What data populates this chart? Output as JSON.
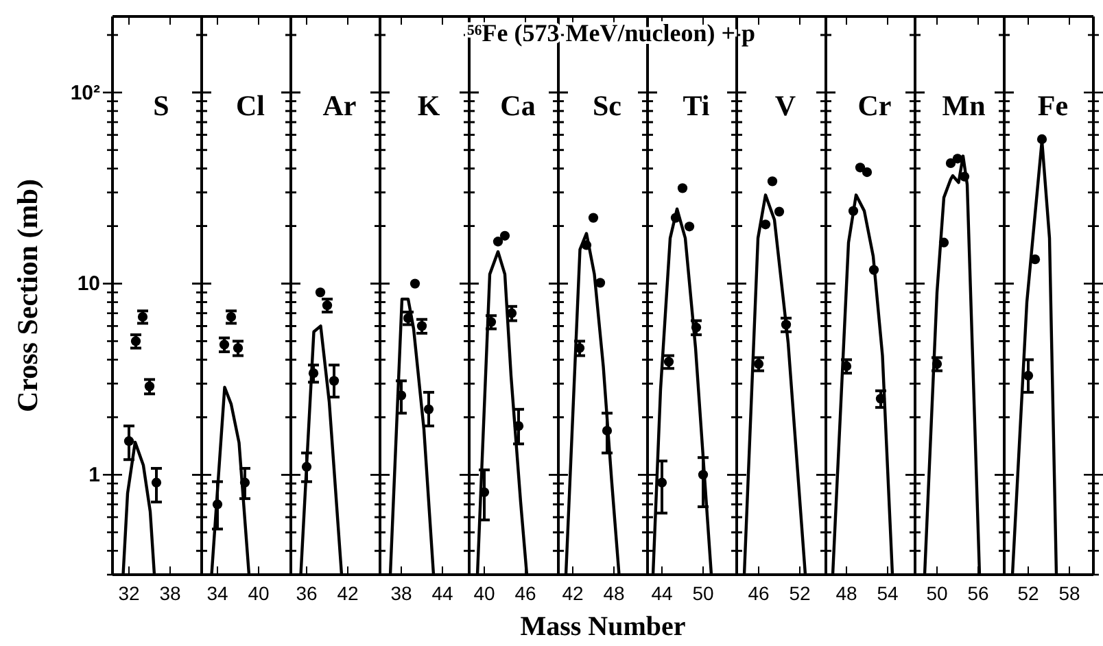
{
  "chart_data": [
    {
      "type": "scatter",
      "ylabel": "Cross Section (mb)",
      "annotations": [
        "S"
      ],
      "log": "y",
      "xlim": [
        29.6,
        42.6
      ],
      "xticks": [
        32,
        38
      ],
      "ylim": [
        0.3,
        250
      ],
      "yticks": [
        {
          "value": 0.3,
          "label": null
        },
        {
          "value": 0.4,
          "label": null
        },
        {
          "value": 0.5,
          "label": null
        },
        {
          "value": 0.6,
          "label": null
        },
        {
          "value": 0.7,
          "label": null
        },
        {
          "value": 0.8,
          "label": null
        },
        {
          "value": 0.9,
          "label": null
        },
        1,
        {
          "value": 2,
          "label": null
        },
        {
          "value": 3,
          "label": null
        },
        {
          "value": 4,
          "label": null
        },
        {
          "value": 5,
          "label": null
        },
        {
          "value": 6,
          "label": null
        },
        {
          "value": 7,
          "label": null
        },
        {
          "value": 8,
          "label": null
        },
        {
          "value": 9,
          "label": null
        },
        10,
        {
          "value": 20,
          "label": null
        },
        {
          "value": 30,
          "label": null
        },
        {
          "value": 40,
          "label": null
        },
        {
          "value": 50,
          "label": null
        },
        {
          "value": 60,
          "label": null
        },
        {
          "value": 70,
          "label": null
        },
        {
          "value": 80,
          "label": null
        },
        {
          "value": 90,
          "label": null
        },
        {
          "value": 100,
          "label": "10²"
        },
        {
          "value": 200,
          "label": null
        }
      ],
      "series": [
        {
          "type": "scatter",
          "marker": "circle",
          "color": "#000000",
          "x": [
            32,
            33,
            34,
            35,
            36
          ],
          "values": [
            1.5,
            5.0,
            6.7,
            2.9,
            0.91
          ],
          "errors": [
            0.3,
            0.4,
            0.5,
            0.25,
            [
              0.72,
              1.08
            ]
          ]
        },
        {
          "type": "line",
          "color": "#000000",
          "x": [
            31.15,
            31.8,
            32.9,
            34.1,
            35.1,
            35.7
          ],
          "values": [
            0.3,
            0.8,
            1.48,
            1.12,
            0.64,
            0.3
          ]
        }
      ]
    },
    {
      "type": "scatter",
      "annotations": [
        "Cl"
      ],
      "log": "y",
      "tick_labels": "x",
      "xlim": [
        31.7,
        44.7
      ],
      "xticks": [
        34,
        40
      ],
      "ylim": [
        0.3,
        250
      ],
      "yticks": [
        {
          "value": 0.3,
          "label": null
        },
        {
          "value": 0.4,
          "label": null
        },
        {
          "value": 0.5,
          "label": null
        },
        {
          "value": 0.6,
          "label": null
        },
        {
          "value": 0.7,
          "label": null
        },
        {
          "value": 0.8,
          "label": null
        },
        {
          "value": 0.9,
          "label": null
        },
        1,
        {
          "value": 2,
          "label": null
        },
        {
          "value": 3,
          "label": null
        },
        {
          "value": 4,
          "label": null
        },
        {
          "value": 5,
          "label": null
        },
        {
          "value": 6,
          "label": null
        },
        {
          "value": 7,
          "label": null
        },
        {
          "value": 8,
          "label": null
        },
        {
          "value": 9,
          "label": null
        },
        10,
        {
          "value": 20,
          "label": null
        },
        {
          "value": 30,
          "label": null
        },
        {
          "value": 40,
          "label": null
        },
        {
          "value": 50,
          "label": null
        },
        {
          "value": 60,
          "label": null
        },
        {
          "value": 70,
          "label": null
        },
        {
          "value": 80,
          "label": null
        },
        {
          "value": 90,
          "label": null
        },
        100,
        {
          "value": 200,
          "label": null
        }
      ],
      "series": [
        {
          "type": "scatter",
          "marker": "circle",
          "color": "#000000",
          "x": [
            34,
            35,
            36,
            37,
            38
          ],
          "values": [
            0.7,
            4.8,
            6.7,
            4.6,
            0.91
          ],
          "errors": [
            [
              0.52,
              0.92
            ],
            0.4,
            0.5,
            0.4,
            [
              0.75,
              1.08
            ]
          ]
        },
        {
          "type": "line",
          "color": "#000000",
          "x": [
            33.15,
            35.05,
            36.0,
            37.15,
            38.6
          ],
          "values": [
            0.3,
            2.87,
            2.34,
            1.47,
            0.3
          ]
        }
      ]
    },
    {
      "type": "scatter",
      "annotations": [
        "Ar"
      ],
      "log": "y",
      "tick_labels": "x",
      "xlim": [
        33.7,
        46.7
      ],
      "xticks": [
        36,
        42
      ],
      "ylim": [
        0.3,
        250
      ],
      "yticks": [
        {
          "value": 0.3,
          "label": null
        },
        {
          "value": 0.4,
          "label": null
        },
        {
          "value": 0.5,
          "label": null
        },
        {
          "value": 0.6,
          "label": null
        },
        {
          "value": 0.7,
          "label": null
        },
        {
          "value": 0.8,
          "label": null
        },
        {
          "value": 0.9,
          "label": null
        },
        1,
        {
          "value": 2,
          "label": null
        },
        {
          "value": 3,
          "label": null
        },
        {
          "value": 4,
          "label": null
        },
        {
          "value": 5,
          "label": null
        },
        {
          "value": 6,
          "label": null
        },
        {
          "value": 7,
          "label": null
        },
        {
          "value": 8,
          "label": null
        },
        {
          "value": 9,
          "label": null
        },
        10,
        {
          "value": 20,
          "label": null
        },
        {
          "value": 30,
          "label": null
        },
        {
          "value": 40,
          "label": null
        },
        {
          "value": 50,
          "label": null
        },
        {
          "value": 60,
          "label": null
        },
        {
          "value": 70,
          "label": null
        },
        {
          "value": 80,
          "label": null
        },
        {
          "value": 90,
          "label": null
        },
        100,
        {
          "value": 200,
          "label": null
        }
      ],
      "series": [
        {
          "type": "scatter",
          "marker": "circle",
          "color": "#000000",
          "x": [
            36,
            37,
            38,
            39,
            40
          ],
          "values": [
            1.1,
            3.4,
            9.0,
            7.7,
            3.1
          ],
          "errors": [
            [
              0.92,
              1.3
            ],
            0.35,
            null,
            0.6,
            [
              2.55,
              3.75
            ]
          ]
        },
        {
          "type": "line",
          "color": "#000000",
          "x": [
            35.15,
            37.05,
            38.05,
            39.3,
            40.15,
            41.1
          ],
          "values": [
            0.3,
            5.6,
            6.0,
            2.4,
            0.9,
            0.3
          ]
        }
      ]
    },
    {
      "type": "scatter",
      "annotations": [
        "K"
      ],
      "log": "y",
      "tick_labels": "x",
      "xlim": [
        34.9,
        47.9
      ],
      "xticks": [
        38,
        44
      ],
      "ylim": [
        0.3,
        250
      ],
      "yticks": [
        {
          "value": 0.3,
          "label": null
        },
        {
          "value": 0.4,
          "label": null
        },
        {
          "value": 0.5,
          "label": null
        },
        {
          "value": 0.6,
          "label": null
        },
        {
          "value": 0.7,
          "label": null
        },
        {
          "value": 0.8,
          "label": null
        },
        {
          "value": 0.9,
          "label": null
        },
        1,
        {
          "value": 2,
          "label": null
        },
        {
          "value": 3,
          "label": null
        },
        {
          "value": 4,
          "label": null
        },
        {
          "value": 5,
          "label": null
        },
        {
          "value": 6,
          "label": null
        },
        {
          "value": 7,
          "label": null
        },
        {
          "value": 8,
          "label": null
        },
        {
          "value": 9,
          "label": null
        },
        10,
        {
          "value": 20,
          "label": null
        },
        {
          "value": 30,
          "label": null
        },
        {
          "value": 40,
          "label": null
        },
        {
          "value": 50,
          "label": null
        },
        {
          "value": 60,
          "label": null
        },
        {
          "value": 70,
          "label": null
        },
        {
          "value": 80,
          "label": null
        },
        {
          "value": 90,
          "label": null
        },
        100,
        {
          "value": 200,
          "label": null
        }
      ],
      "series": [
        {
          "type": "scatter",
          "marker": "circle",
          "color": "#000000",
          "x": [
            38,
            39,
            40,
            41,
            42
          ],
          "values": [
            2.6,
            6.6,
            10.0,
            6.0,
            2.2
          ],
          "errors": [
            [
              2.1,
              3.1
            ],
            0.5,
            null,
            0.5,
            [
              1.8,
              2.7
            ]
          ]
        },
        {
          "type": "line",
          "color": "#000000",
          "x": [
            36.4,
            38.1,
            39.0,
            39.8,
            41.3,
            42.7
          ],
          "values": [
            0.3,
            8.3,
            8.3,
            5.8,
            1.73,
            0.3
          ]
        }
      ]
    },
    {
      "type": "scatter",
      "annotations": [
        "Ca"
      ],
      "log": "y",
      "tick_labels": "x",
      "xlim": [
        37.8,
        50.8
      ],
      "xticks": [
        40,
        46
      ],
      "ylim": [
        0.3,
        250
      ],
      "yticks": [
        {
          "value": 0.3,
          "label": null
        },
        {
          "value": 0.4,
          "label": null
        },
        {
          "value": 0.5,
          "label": null
        },
        {
          "value": 0.6,
          "label": null
        },
        {
          "value": 0.7,
          "label": null
        },
        {
          "value": 0.8,
          "label": null
        },
        {
          "value": 0.9,
          "label": null
        },
        1,
        {
          "value": 2,
          "label": null
        },
        {
          "value": 3,
          "label": null
        },
        {
          "value": 4,
          "label": null
        },
        {
          "value": 5,
          "label": null
        },
        {
          "value": 6,
          "label": null
        },
        {
          "value": 7,
          "label": null
        },
        {
          "value": 8,
          "label": null
        },
        {
          "value": 9,
          "label": null
        },
        10,
        {
          "value": 20,
          "label": null
        },
        {
          "value": 30,
          "label": null
        },
        {
          "value": 40,
          "label": null
        },
        {
          "value": 50,
          "label": null
        },
        {
          "value": 60,
          "label": null
        },
        {
          "value": 70,
          "label": null
        },
        {
          "value": 80,
          "label": null
        },
        {
          "value": 90,
          "label": null
        },
        100,
        {
          "value": 200,
          "label": null
        }
      ],
      "series": [
        {
          "type": "scatter",
          "marker": "circle",
          "color": "#000000",
          "x": [
            40,
            41,
            42,
            43,
            44,
            45
          ],
          "values": [
            0.81,
            6.3,
            16.6,
            17.8,
            7.0,
            1.8
          ],
          "errors": [
            [
              0.58,
              1.06
            ],
            0.5,
            null,
            null,
            0.6,
            [
              1.45,
              2.2
            ]
          ]
        },
        {
          "type": "line",
          "color": "#000000",
          "x": [
            39.0,
            40.8,
            42.0,
            43.0,
            43.9,
            45.3,
            46.2
          ],
          "values": [
            0.3,
            11.2,
            14.7,
            11.2,
            3.3,
            0.72,
            0.3
          ]
        }
      ]
    },
    {
      "type": "scatter",
      "title": "⁵⁶Fe (573 MeV/nucleon) + p",
      "xlabel": "Mass Number",
      "annotations": [
        "Sc"
      ],
      "log": "y",
      "tick_labels": "x",
      "xlim": [
        39.9,
        52.9
      ],
      "xticks": [
        42,
        48
      ],
      "ylim": [
        0.3,
        250
      ],
      "yticks": [
        {
          "value": 0.3,
          "label": null
        },
        {
          "value": 0.4,
          "label": null
        },
        {
          "value": 0.5,
          "label": null
        },
        {
          "value": 0.6,
          "label": null
        },
        {
          "value": 0.7,
          "label": null
        },
        {
          "value": 0.8,
          "label": null
        },
        {
          "value": 0.9,
          "label": null
        },
        1,
        {
          "value": 2,
          "label": null
        },
        {
          "value": 3,
          "label": null
        },
        {
          "value": 4,
          "label": null
        },
        {
          "value": 5,
          "label": null
        },
        {
          "value": 6,
          "label": null
        },
        {
          "value": 7,
          "label": null
        },
        {
          "value": 8,
          "label": null
        },
        {
          "value": 9,
          "label": null
        },
        10,
        {
          "value": 20,
          "label": null
        },
        {
          "value": 30,
          "label": null
        },
        {
          "value": 40,
          "label": null
        },
        {
          "value": 50,
          "label": null
        },
        {
          "value": 60,
          "label": null
        },
        {
          "value": 70,
          "label": null
        },
        {
          "value": 80,
          "label": null
        },
        {
          "value": 90,
          "label": null
        },
        100,
        {
          "value": 200,
          "label": null
        }
      ],
      "series": [
        {
          "type": "scatter",
          "marker": "circle",
          "color": "#000000",
          "x": [
            43,
            44,
            45,
            46,
            47
          ],
          "values": [
            4.6,
            15.9,
            22.1,
            10.1,
            1.7
          ],
          "errors": [
            0.4,
            null,
            null,
            null,
            [
              1.3,
              2.1
            ]
          ]
        },
        {
          "type": "line",
          "color": "#000000",
          "x": [
            41.0,
            43.05,
            44.0,
            45.15,
            46.45,
            47.65,
            48.75
          ],
          "values": [
            0.3,
            15.1,
            18.3,
            11.2,
            3.7,
            0.95,
            0.3
          ]
        }
      ]
    },
    {
      "type": "scatter",
      "annotations": [
        "Ti"
      ],
      "log": "y",
      "tick_labels": "x",
      "xlim": [
        41.9,
        54.9
      ],
      "xticks": [
        44,
        50
      ],
      "ylim": [
        0.3,
        250
      ],
      "yticks": [
        {
          "value": 0.3,
          "label": null
        },
        {
          "value": 0.4,
          "label": null
        },
        {
          "value": 0.5,
          "label": null
        },
        {
          "value": 0.6,
          "label": null
        },
        {
          "value": 0.7,
          "label": null
        },
        {
          "value": 0.8,
          "label": null
        },
        {
          "value": 0.9,
          "label": null
        },
        1,
        {
          "value": 2,
          "label": null
        },
        {
          "value": 3,
          "label": null
        },
        {
          "value": 4,
          "label": null
        },
        {
          "value": 5,
          "label": null
        },
        {
          "value": 6,
          "label": null
        },
        {
          "value": 7,
          "label": null
        },
        {
          "value": 8,
          "label": null
        },
        {
          "value": 9,
          "label": null
        },
        10,
        {
          "value": 20,
          "label": null
        },
        {
          "value": 30,
          "label": null
        },
        {
          "value": 40,
          "label": null
        },
        {
          "value": 50,
          "label": null
        },
        {
          "value": 60,
          "label": null
        },
        {
          "value": 70,
          "label": null
        },
        {
          "value": 80,
          "label": null
        },
        {
          "value": 90,
          "label": null
        },
        100,
        {
          "value": 200,
          "label": null
        }
      ],
      "series": [
        {
          "type": "scatter",
          "marker": "circle",
          "color": "#000000",
          "x": [
            44,
            45,
            46,
            47,
            48,
            49,
            50
          ],
          "values": [
            0.91,
            3.9,
            22.1,
            31.6,
            19.9,
            5.9,
            1.0
          ],
          "errors": [
            [
              0.63,
              1.18
            ],
            0.3,
            null,
            null,
            null,
            0.5,
            [
              0.68,
              1.23
            ]
          ]
        },
        {
          "type": "line",
          "color": "#000000",
          "x": [
            42.7,
            43.8,
            45.2,
            46.2,
            47.4,
            48.9,
            51.2
          ],
          "values": [
            0.3,
            2.8,
            17.3,
            24.6,
            17.3,
            4.6,
            0.3
          ]
        }
      ]
    },
    {
      "type": "scatter",
      "annotations": [
        "V"
      ],
      "log": "y",
      "tick_labels": "x",
      "xlim": [
        42.8,
        55.8
      ],
      "xticks": [
        46,
        52
      ],
      "ylim": [
        0.3,
        250
      ],
      "yticks": [
        {
          "value": 0.3,
          "label": null
        },
        {
          "value": 0.4,
          "label": null
        },
        {
          "value": 0.5,
          "label": null
        },
        {
          "value": 0.6,
          "label": null
        },
        {
          "value": 0.7,
          "label": null
        },
        {
          "value": 0.8,
          "label": null
        },
        {
          "value": 0.9,
          "label": null
        },
        1,
        {
          "value": 2,
          "label": null
        },
        {
          "value": 3,
          "label": null
        },
        {
          "value": 4,
          "label": null
        },
        {
          "value": 5,
          "label": null
        },
        {
          "value": 6,
          "label": null
        },
        {
          "value": 7,
          "label": null
        },
        {
          "value": 8,
          "label": null
        },
        {
          "value": 9,
          "label": null
        },
        10,
        {
          "value": 20,
          "label": null
        },
        {
          "value": 30,
          "label": null
        },
        {
          "value": 40,
          "label": null
        },
        {
          "value": 50,
          "label": null
        },
        {
          "value": 60,
          "label": null
        },
        {
          "value": 70,
          "label": null
        },
        {
          "value": 80,
          "label": null
        },
        {
          "value": 90,
          "label": null
        },
        100,
        {
          "value": 200,
          "label": null
        }
      ],
      "series": [
        {
          "type": "scatter",
          "marker": "circle",
          "color": "#000000",
          "x": [
            46,
            47,
            48,
            49,
            50
          ],
          "values": [
            3.8,
            20.4,
            34.3,
            23.8,
            6.1
          ],
          "errors": [
            0.3,
            null,
            null,
            null,
            0.5
          ]
        },
        {
          "type": "line",
          "color": "#000000",
          "x": [
            43.9,
            45.9,
            47.0,
            48.3,
            50.3,
            52.8
          ],
          "values": [
            0.3,
            17.3,
            29.1,
            21.6,
            4.9,
            0.3
          ]
        }
      ]
    },
    {
      "type": "scatter",
      "annotations": [
        "Cr"
      ],
      "log": "y",
      "tick_labels": "x",
      "xlim": [
        45.0,
        58.0
      ],
      "xticks": [
        48,
        54
      ],
      "ylim": [
        0.3,
        250
      ],
      "yticks": [
        {
          "value": 0.3,
          "label": null
        },
        {
          "value": 0.4,
          "label": null
        },
        {
          "value": 0.5,
          "label": null
        },
        {
          "value": 0.6,
          "label": null
        },
        {
          "value": 0.7,
          "label": null
        },
        {
          "value": 0.8,
          "label": null
        },
        {
          "value": 0.9,
          "label": null
        },
        1,
        {
          "value": 2,
          "label": null
        },
        {
          "value": 3,
          "label": null
        },
        {
          "value": 4,
          "label": null
        },
        {
          "value": 5,
          "label": null
        },
        {
          "value": 6,
          "label": null
        },
        {
          "value": 7,
          "label": null
        },
        {
          "value": 8,
          "label": null
        },
        {
          "value": 9,
          "label": null
        },
        10,
        {
          "value": 20,
          "label": null
        },
        {
          "value": 30,
          "label": null
        },
        {
          "value": 40,
          "label": null
        },
        {
          "value": 50,
          "label": null
        },
        {
          "value": 60,
          "label": null
        },
        {
          "value": 70,
          "label": null
        },
        {
          "value": 80,
          "label": null
        },
        {
          "value": 90,
          "label": null
        },
        100,
        {
          "value": 200,
          "label": null
        }
      ],
      "series": [
        {
          "type": "scatter",
          "marker": "circle",
          "color": "#000000",
          "x": [
            48,
            49,
            50,
            51,
            52,
            53
          ],
          "values": [
            3.7,
            24.0,
            40.5,
            38.3,
            11.8,
            2.5
          ],
          "errors": [
            0.3,
            null,
            null,
            null,
            null,
            0.25
          ]
        },
        {
          "type": "line",
          "color": "#000000",
          "x": [
            46.0,
            48.3,
            49.4,
            50.6,
            51.9,
            53.25,
            54.7
          ],
          "values": [
            0.3,
            16.4,
            29.1,
            24.0,
            13.9,
            4.2,
            0.3
          ]
        }
      ]
    },
    {
      "type": "scatter",
      "annotations": [
        "Mn"
      ],
      "log": "y",
      "tick_labels": "x",
      "xlim": [
        46.8,
        59.8
      ],
      "xticks": [
        50,
        56
      ],
      "ylim": [
        0.3,
        250
      ],
      "yticks": [
        {
          "value": 0.3,
          "label": null
        },
        {
          "value": 0.4,
          "label": null
        },
        {
          "value": 0.5,
          "label": null
        },
        {
          "value": 0.6,
          "label": null
        },
        {
          "value": 0.7,
          "label": null
        },
        {
          "value": 0.8,
          "label": null
        },
        {
          "value": 0.9,
          "label": null
        },
        1,
        {
          "value": 2,
          "label": null
        },
        {
          "value": 3,
          "label": null
        },
        {
          "value": 4,
          "label": null
        },
        {
          "value": 5,
          "label": null
        },
        {
          "value": 6,
          "label": null
        },
        {
          "value": 7,
          "label": null
        },
        {
          "value": 8,
          "label": null
        },
        {
          "value": 9,
          "label": null
        },
        10,
        {
          "value": 20,
          "label": null
        },
        {
          "value": 30,
          "label": null
        },
        {
          "value": 40,
          "label": null
        },
        {
          "value": 50,
          "label": null
        },
        {
          "value": 60,
          "label": null
        },
        {
          "value": 70,
          "label": null
        },
        {
          "value": 80,
          "label": null
        },
        {
          "value": 90,
          "label": null
        },
        100,
        {
          "value": 200,
          "label": null
        }
      ],
      "series": [
        {
          "type": "scatter",
          "marker": "circle",
          "color": "#000000",
          "x": [
            50,
            51,
            52,
            53,
            54
          ],
          "values": [
            3.8,
            16.4,
            42.7,
            45.1,
            36.3
          ],
          "errors": [
            0.3,
            null,
            null,
            null,
            null
          ]
        },
        {
          "type": "line",
          "color": "#000000",
          "x": [
            48.2,
            50.0,
            51.0,
            52.0,
            52.3,
            53.15,
            53.8,
            54.4,
            56.2
          ],
          "values": [
            0.3,
            9.0,
            28.2,
            35.2,
            36.7,
            33.8,
            46.5,
            33.0,
            0.3
          ]
        }
      ]
    },
    {
      "type": "scatter",
      "annotations": [
        "Fe"
      ],
      "log": "y",
      "tick_labels": "x",
      "xlim": [
        48.5,
        61.5
      ],
      "xticks": [
        52,
        58
      ],
      "ylim": [
        0.3,
        250
      ],
      "yticks": [
        {
          "value": 0.3,
          "label": null
        },
        {
          "value": 0.4,
          "label": null
        },
        {
          "value": 0.5,
          "label": null
        },
        {
          "value": 0.6,
          "label": null
        },
        {
          "value": 0.7,
          "label": null
        },
        {
          "value": 0.8,
          "label": null
        },
        {
          "value": 0.9,
          "label": null
        },
        1,
        {
          "value": 2,
          "label": null
        },
        {
          "value": 3,
          "label": null
        },
        {
          "value": 4,
          "label": null
        },
        {
          "value": 5,
          "label": null
        },
        {
          "value": 6,
          "label": null
        },
        {
          "value": 7,
          "label": null
        },
        {
          "value": 8,
          "label": null
        },
        {
          "value": 9,
          "label": null
        },
        10,
        {
          "value": 20,
          "label": null
        },
        {
          "value": 30,
          "label": null
        },
        {
          "value": 40,
          "label": null
        },
        {
          "value": 50,
          "label": null
        },
        {
          "value": 60,
          "label": null
        },
        {
          "value": 70,
          "label": null
        },
        {
          "value": 80,
          "label": null
        },
        {
          "value": 90,
          "label": null
        },
        100,
        {
          "value": 200,
          "label": null
        }
      ],
      "series": [
        {
          "type": "scatter",
          "marker": "circle",
          "color": "#000000",
          "x": [
            52,
            53,
            54
          ],
          "values": [
            3.3,
            13.4,
            57
          ],
          "errors": [
            [
              2.7,
              4.0
            ],
            null,
            null
          ]
        },
        {
          "type": "line",
          "color": "#000000",
          "x": [
            49.7,
            51.8,
            54.0,
            55.1,
            56.1
          ],
          "values": [
            0.3,
            8.0,
            56,
            17.3,
            0.3
          ]
        }
      ]
    }
  ]
}
